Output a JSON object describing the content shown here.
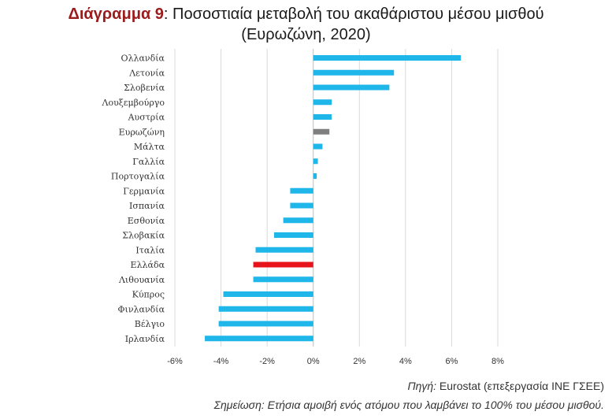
{
  "title": {
    "prefix": "Διάγραμμα 9",
    "text": ": Ποσοστιαία μεταβολή του ακαθάριστου μέσου μισθού",
    "line2": "(Ευρωζώνη, 2020)"
  },
  "footer": {
    "source_prefix": "Πηγή:",
    "source_text": " Eurostat (επεξεργασία ΙΝΕ ΓΣΕΕ)",
    "note": "Σημείωση: Ετήσια αμοιβή ενός ατόμου που λαμβάνει το 100% του μέσου μισθού."
  },
  "colors": {
    "default": "#1fb6ea",
    "eurozone": "#7f7f7f",
    "greece": "#e8141b",
    "grid": "#d9d9d9",
    "title_prefix": "#9b1c1c"
  },
  "chart_data": {
    "type": "bar",
    "orientation": "horizontal",
    "categories": [
      "Ολλανδία",
      "Λετονία",
      "Σλοβενία",
      "Λουξεμβούργο",
      "Αυστρία",
      "Ευρωζώνη",
      "Μάλτα",
      "Γαλλία",
      "Πορτογαλία",
      "Γερμανία",
      "Ισπανία",
      "Εσθονία",
      "Σλοβακία",
      "Ιταλία",
      "Ελλάδα",
      "Λιθουανία",
      "Κύπρος",
      "Φινλανδία",
      "Βέλγιο",
      "Ιρλανδία"
    ],
    "values": [
      6.4,
      3.5,
      3.3,
      0.8,
      0.8,
      0.7,
      0.4,
      0.2,
      0.15,
      -1.0,
      -1.0,
      -1.3,
      -1.7,
      -2.5,
      -2.6,
      -2.6,
      -3.9,
      -4.1,
      -4.1,
      -4.7
    ],
    "highlight": {
      "Ευρωζώνη": "eurozone",
      "Ελλάδα": "greece"
    },
    "xlim": [
      -6,
      8
    ],
    "xticks": [
      -6,
      -4,
      -2,
      0,
      2,
      4,
      6,
      8
    ],
    "xtick_labels": [
      "-6%",
      "-4%",
      "-2%",
      "0%",
      "2%",
      "4%",
      "6%",
      "8%"
    ],
    "grid": "vertical"
  }
}
